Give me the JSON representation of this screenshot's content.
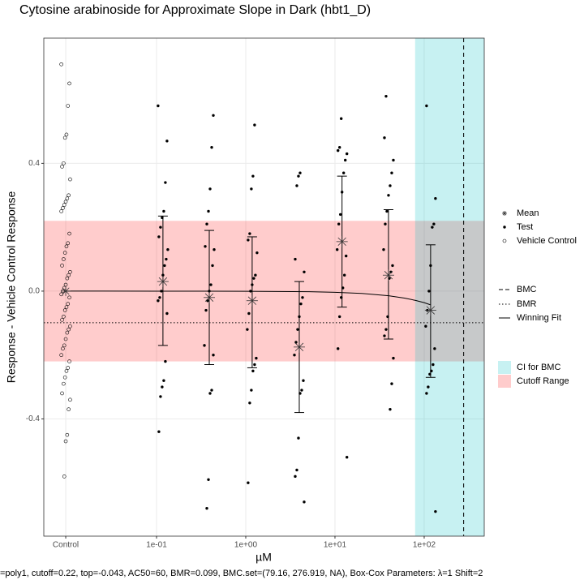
{
  "chart_data": {
    "type": "scatter",
    "title": "Cytosine arabinoside for Approximate Slope in Dark (hbt1_D)",
    "xlabel": "µM",
    "ylabel": "Response - Vehicle Control Response",
    "caption": "=poly1, cutoff=0.22, top=-0.043, AC50=60, BMR=0.099, BMC.set=(79.16, 276.919, NA), Box-Cox Parameters: λ=1 Shift=2",
    "xlog": true,
    "grid": true,
    "xlim": [
      0.00545,
      471
    ],
    "ylim": [
      -0.767,
      0.792
    ],
    "xticks": [
      {
        "value": 0.0096,
        "label": "Control"
      },
      {
        "value": 0.1,
        "label": "1e-01"
      },
      {
        "value": 1,
        "label": "1e+00"
      },
      {
        "value": 10,
        "label": "1e+01"
      },
      {
        "value": 100,
        "label": "1e+02"
      }
    ],
    "yticks": [
      -0.4,
      {
        "value": 0,
        "label": "0.0"
      },
      0.4
    ],
    "mean_name": "Mean",
    "test_name": "Test",
    "control": {
      "name": "Vehicle Control",
      "x": 0.0096,
      "mean": 0,
      "values": [
        0.71,
        0.65,
        0.58,
        0.49,
        0.48,
        0.4,
        0.39,
        0.35,
        0.3,
        0.29,
        0.28,
        0.27,
        0.26,
        0.25,
        0.18,
        0.15,
        0.14,
        0.12,
        0.1,
        0.08,
        0.06,
        0.05,
        0.04,
        0.02,
        0.01,
        0.0,
        -0.01,
        -0.02,
        -0.04,
        -0.05,
        -0.06,
        -0.08,
        -0.09,
        -0.11,
        -0.12,
        -0.13,
        -0.15,
        -0.17,
        -0.18,
        -0.2,
        -0.22,
        -0.24,
        -0.25,
        -0.27,
        -0.29,
        -0.32,
        -0.34,
        -0.37,
        -0.45,
        -0.47,
        -0.58
      ]
    },
    "groups": [
      {
        "dose": 0.118,
        "mean": 0.03,
        "lower": -0.17,
        "upper": 0.235,
        "values": [
          0.58,
          0.47,
          0.34,
          0.25,
          0.23,
          0.2,
          0.17,
          0.13,
          0.1,
          0.08,
          0.05,
          0.0,
          -0.02,
          -0.03,
          -0.07,
          -0.22,
          -0.28,
          -0.3,
          -0.33,
          -0.44
        ]
      },
      {
        "dose": 0.39,
        "mean": -0.02,
        "lower": -0.23,
        "upper": 0.19,
        "values": [
          0.55,
          0.45,
          0.32,
          0.25,
          0.21,
          0.14,
          0.13,
          0.08,
          0.02,
          0.0,
          -0.03,
          -0.06,
          -0.17,
          -0.2,
          -0.31,
          -0.32,
          -0.59,
          -0.68
        ]
      },
      {
        "dose": 1.18,
        "mean": -0.03,
        "lower": -0.24,
        "upper": 0.17,
        "values": [
          0.52,
          0.36,
          0.32,
          0.18,
          0.16,
          0.12,
          0.05,
          0.04,
          0.02,
          0.0,
          -0.07,
          -0.12,
          -0.21,
          -0.23,
          -0.25,
          -0.31,
          -0.35,
          -0.6
        ]
      },
      {
        "dose": 3.98,
        "mean": -0.175,
        "lower": -0.38,
        "upper": 0.03,
        "values": [
          0.37,
          0.36,
          0.33,
          0.1,
          0.06,
          -0.02,
          -0.04,
          -0.08,
          -0.12,
          -0.16,
          -0.2,
          -0.28,
          -0.31,
          -0.32,
          -0.46,
          -0.56,
          -0.58,
          -0.66
        ]
      },
      {
        "dose": 12.0,
        "mean": 0.155,
        "lower": -0.05,
        "upper": 0.36,
        "values": [
          0.54,
          0.45,
          0.44,
          0.43,
          0.41,
          0.37,
          0.31,
          0.24,
          0.21,
          0.13,
          0.11,
          0.05,
          0.01,
          -0.02,
          -0.08,
          -0.18,
          -0.52
        ]
      },
      {
        "dose": 39.8,
        "mean": 0.05,
        "lower": -0.15,
        "upper": 0.255,
        "values": [
          0.61,
          0.48,
          0.41,
          0.37,
          0.33,
          0.3,
          0.25,
          0.21,
          0.13,
          0.08,
          0.06,
          0.04,
          -0.08,
          -0.12,
          -0.14,
          -0.21,
          -0.29,
          -0.37
        ]
      },
      {
        "dose": 118,
        "mean": -0.06,
        "lower": -0.27,
        "upper": 0.145,
        "values": [
          0.58,
          0.29,
          0.21,
          0.2,
          0.08,
          0.0,
          -0.06,
          -0.11,
          -0.18,
          -0.23,
          -0.25,
          -0.26,
          -0.3,
          -0.32,
          -0.69
        ]
      }
    ],
    "fit": {
      "name": "Winning Fit",
      "x": [
        0.0096,
        0.1,
        1,
        5,
        10,
        20,
        40,
        60,
        80,
        100,
        118
      ],
      "values": [
        0,
        -4e-05,
        -0.0004,
        -0.0018,
        -0.0036,
        -0.0073,
        -0.0146,
        -0.0219,
        -0.029,
        -0.036,
        -0.043
      ]
    },
    "bmc": {
      "name": "BMC",
      "value": 276.919
    },
    "bmr": {
      "name": "BMR",
      "value": -0.099
    },
    "ci": {
      "name": "CI for BMC",
      "lower": 79.16,
      "color": "rgba(0,191,196,0.22)"
    },
    "cutoff": {
      "name": "Cutoff Range",
      "range": [
        -0.22,
        0.22
      ],
      "color": "rgba(255,0,0,0.2)"
    }
  }
}
